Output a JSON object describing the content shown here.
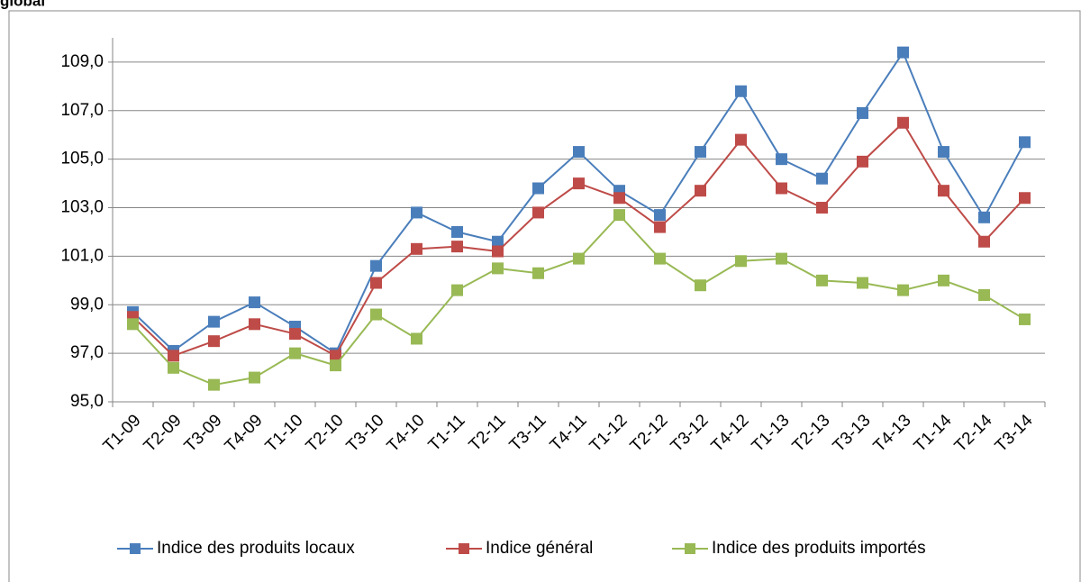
{
  "chart_data": {
    "type": "line",
    "title": "global",
    "categories": [
      "T1-09",
      "T2-09",
      "T3-09",
      "T4-09",
      "T1-10",
      "T2-10",
      "T3-10",
      "T4-10",
      "T1-11",
      "T2-11",
      "T3-11",
      "T4-11",
      "T1-12",
      "T2-12",
      "T3-12",
      "T4-12",
      "T1-13",
      "T2-13",
      "T3-13",
      "T4-13",
      "T1-14",
      "T2-14",
      "T3-14"
    ],
    "series": [
      {
        "name": "Indice des produits locaux",
        "color": "#4a7ebb",
        "values": [
          98.7,
          97.1,
          98.3,
          99.1,
          98.1,
          97.0,
          100.6,
          102.8,
          102.0,
          101.6,
          103.8,
          105.3,
          103.7,
          102.7,
          105.3,
          107.8,
          105.0,
          104.2,
          106.9,
          109.4,
          105.3,
          102.6,
          105.7
        ]
      },
      {
        "name": "Indice général",
        "color": "#be4b48",
        "values": [
          98.5,
          96.9,
          97.5,
          98.2,
          97.8,
          96.9,
          99.9,
          101.3,
          101.4,
          101.2,
          102.8,
          104.0,
          103.4,
          102.2,
          103.7,
          105.8,
          103.8,
          103.0,
          104.9,
          106.5,
          103.7,
          101.6,
          103.4
        ]
      },
      {
        "name": "Indice des produits importés",
        "color": "#98b954",
        "values": [
          98.2,
          96.4,
          95.7,
          96.0,
          97.0,
          96.5,
          98.6,
          97.6,
          99.6,
          100.5,
          100.3,
          100.9,
          102.7,
          100.9,
          99.8,
          100.8,
          100.9,
          100.0,
          99.9,
          99.6,
          100.0,
          99.4,
          98.4
        ]
      }
    ],
    "ylim": [
      95,
      110
    ],
    "yticks": [
      {
        "value": 95,
        "label": "95,0"
      },
      {
        "value": 97,
        "label": "97,0"
      },
      {
        "value": 99,
        "label": "99,0"
      },
      {
        "value": 101,
        "label": "101,0"
      },
      {
        "value": 103,
        "label": "103,0"
      },
      {
        "value": 105,
        "label": "105,0"
      },
      {
        "value": 107,
        "label": "107,0"
      },
      {
        "value": 109,
        "label": "109,0"
      }
    ],
    "grid": true,
    "legend": "bottom"
  }
}
